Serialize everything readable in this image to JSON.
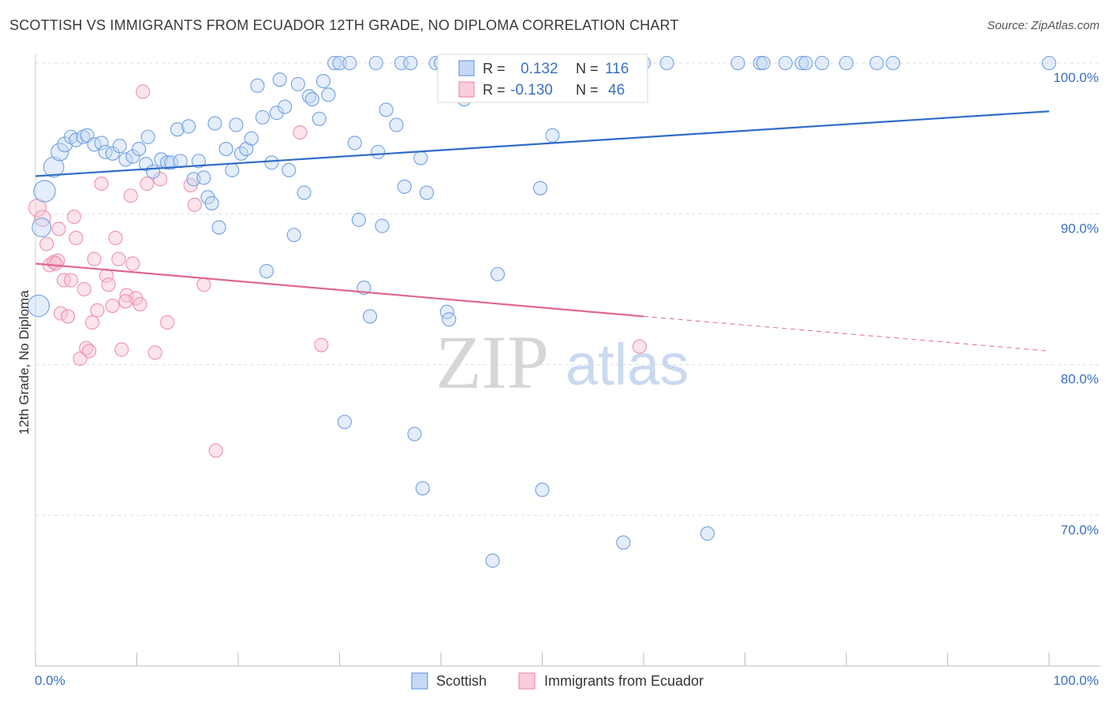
{
  "title": "SCOTTISH VS IMMIGRANTS FROM ECUADOR 12TH GRADE, NO DIPLOMA CORRELATION CHART",
  "source": "Source: ZipAtlas.com",
  "watermark": {
    "zip": "ZIP",
    "atlas": "atlas"
  },
  "colors": {
    "blue": "#6fa0e0",
    "blue_line": "#2f6cc8",
    "pink": "#ef8fae",
    "pink_line": "#e0678f",
    "grid": "#dddddd"
  },
  "stats_box": {
    "rows": [
      {
        "r_label": "R =",
        "r_value": "0.132",
        "n_label": "N =",
        "n_value": "116"
      },
      {
        "r_label": "R =",
        "r_value": "-0.130",
        "n_label": "N =",
        "n_value": "46"
      }
    ]
  },
  "chart_data": {
    "type": "scatter",
    "title": "SCOTTISH VS IMMIGRANTS FROM ECUADOR 12TH GRADE, NO DIPLOMA CORRELATION CHART",
    "xlabel": "",
    "ylabel": "12th Grade, No Diploma",
    "xlim": [
      0,
      100
    ],
    "ylim": [
      60,
      100
    ],
    "x_tick_labels": [
      "0.0%",
      "100.0%"
    ],
    "y_ticks": [
      70,
      80,
      90,
      100
    ],
    "y_tick_labels": [
      "70.0%",
      "80.0%",
      "90.0%",
      "100.0%"
    ],
    "grid": true,
    "legend_placement": "bottom-center",
    "series": [
      {
        "name": "Scottish",
        "color": "#6fa0e0",
        "trend": {
          "x": [
            0,
            100
          ],
          "y": [
            92.5,
            96.8
          ]
        },
        "points": [
          [
            0.3,
            83.9,
            1.6
          ],
          [
            0.9,
            91.5,
            1.6
          ],
          [
            0.6,
            89.1,
            1.4
          ],
          [
            1.8,
            93.1,
            1.5
          ],
          [
            2.4,
            94.1,
            1.3
          ],
          [
            2.9,
            94.6,
            1.1
          ],
          [
            3.5,
            95.1,
            1
          ],
          [
            4.0,
            94.9,
            1
          ],
          [
            4.7,
            95.1,
            1
          ],
          [
            5.1,
            95.2,
            1
          ],
          [
            5.8,
            94.6,
            1
          ],
          [
            6.5,
            94.7,
            1
          ],
          [
            6.9,
            94.1,
            1
          ],
          [
            7.6,
            94.0,
            1
          ],
          [
            8.3,
            94.5,
            1
          ],
          [
            8.9,
            93.6,
            1
          ],
          [
            9.6,
            93.8,
            1
          ],
          [
            10.2,
            94.3,
            1
          ],
          [
            10.9,
            93.3,
            1
          ],
          [
            11.1,
            95.1,
            1
          ],
          [
            11.6,
            92.8,
            1
          ],
          [
            12.4,
            93.6,
            1
          ],
          [
            13.0,
            93.4,
            1
          ],
          [
            13.4,
            93.4,
            1
          ],
          [
            14.3,
            93.5,
            1
          ],
          [
            14.0,
            95.6,
            1
          ],
          [
            15.1,
            95.8,
            1
          ],
          [
            15.6,
            92.3,
            1
          ],
          [
            16.1,
            93.5,
            1
          ],
          [
            16.6,
            92.4,
            1
          ],
          [
            17.0,
            91.1,
            1
          ],
          [
            17.4,
            90.7,
            1
          ],
          [
            18.1,
            89.1,
            1
          ],
          [
            17.7,
            96.0,
            1
          ],
          [
            18.8,
            94.3,
            1
          ],
          [
            19.4,
            92.9,
            1
          ],
          [
            19.8,
            95.9,
            1
          ],
          [
            20.3,
            94.0,
            1
          ],
          [
            20.8,
            94.3,
            1
          ],
          [
            21.3,
            95.0,
            1
          ],
          [
            21.9,
            98.5,
            1
          ],
          [
            22.4,
            96.4,
            1
          ],
          [
            22.8,
            86.2,
            1
          ],
          [
            23.3,
            93.4,
            1
          ],
          [
            23.8,
            96.7,
            1
          ],
          [
            24.1,
            98.9,
            1
          ],
          [
            24.6,
            97.1,
            1
          ],
          [
            25.0,
            92.9,
            1
          ],
          [
            25.5,
            88.6,
            1
          ],
          [
            25.9,
            98.6,
            1
          ],
          [
            26.5,
            91.4,
            1
          ],
          [
            27.0,
            97.8,
            1
          ],
          [
            27.3,
            97.6,
            1
          ],
          [
            28.0,
            96.3,
            1
          ],
          [
            28.4,
            98.8,
            1
          ],
          [
            28.9,
            97.9,
            1
          ],
          [
            29.5,
            100,
            1
          ],
          [
            30.0,
            100,
            1
          ],
          [
            31.0,
            100,
            1
          ],
          [
            31.5,
            94.7,
            1
          ],
          [
            31.9,
            89.6,
            1
          ],
          [
            32.4,
            85.1,
            1
          ],
          [
            33.0,
            83.2,
            1
          ],
          [
            33.6,
            100,
            1
          ],
          [
            33.8,
            94.1,
            1
          ],
          [
            34.2,
            89.2,
            1
          ],
          [
            34.6,
            96.9,
            1
          ],
          [
            35.6,
            95.9,
            1
          ],
          [
            36.1,
            100,
            1
          ],
          [
            36.4,
            91.8,
            1
          ],
          [
            37.0,
            100,
            1
          ],
          [
            37.4,
            75.4,
            1
          ],
          [
            38.2,
            71.8,
            1
          ],
          [
            38.0,
            93.7,
            1
          ],
          [
            38.6,
            91.4,
            1
          ],
          [
            39.5,
            100,
            1
          ],
          [
            40.0,
            100,
            1
          ],
          [
            40.6,
            83.5,
            1
          ],
          [
            40.8,
            83.0,
            1
          ],
          [
            41.2,
            100,
            1
          ],
          [
            41.9,
            100,
            1
          ],
          [
            42.3,
            97.6,
            1
          ],
          [
            43.1,
            98.7,
            1
          ],
          [
            43.9,
            100,
            1
          ],
          [
            44.4,
            100,
            1
          ],
          [
            45.1,
            67.0,
            1
          ],
          [
            45.6,
            86.0,
            1
          ],
          [
            46.2,
            100,
            1
          ],
          [
            48.2,
            100,
            1
          ],
          [
            48.6,
            97.9,
            1
          ],
          [
            49.4,
            100,
            1
          ],
          [
            49.8,
            91.7,
            1
          ],
          [
            50.0,
            71.7,
            1
          ],
          [
            50.5,
            100,
            1
          ],
          [
            51.0,
            95.2,
            1
          ],
          [
            52.0,
            100,
            1
          ],
          [
            53.0,
            100,
            1
          ],
          [
            54.1,
            100,
            1
          ],
          [
            55.0,
            100,
            1
          ],
          [
            55.6,
            100,
            1
          ],
          [
            56.4,
            100,
            1
          ],
          [
            58.0,
            100,
            1
          ],
          [
            58.0,
            68.2,
            1
          ],
          [
            60.0,
            100,
            1
          ],
          [
            62.3,
            100,
            1
          ],
          [
            66.3,
            68.8,
            1
          ],
          [
            69.3,
            100,
            1
          ],
          [
            71.5,
            100,
            1
          ],
          [
            71.8,
            100,
            1
          ],
          [
            74.0,
            100,
            1
          ],
          [
            75.6,
            100,
            1
          ],
          [
            76.0,
            100,
            1
          ],
          [
            77.6,
            100,
            1
          ],
          [
            80.0,
            100,
            1
          ],
          [
            83.0,
            100,
            1
          ],
          [
            84.6,
            100,
            1
          ],
          [
            100.0,
            100,
            1
          ],
          [
            30.5,
            76.2,
            1
          ]
        ]
      },
      {
        "name": "Immigrants from Ecuador",
        "color": "#ef8fae",
        "trend": {
          "x": [
            0,
            60
          ],
          "y": [
            86.7,
            83.2
          ]
        },
        "trend_extension": {
          "x": [
            60,
            100
          ],
          "y": [
            83.2,
            80.9
          ]
        },
        "points": [
          [
            0.2,
            90.4,
            1.3
          ],
          [
            0.7,
            89.7,
            1.2
          ],
          [
            1.1,
            88.0,
            1
          ],
          [
            1.4,
            86.6,
            1
          ],
          [
            1.8,
            86.8,
            1
          ],
          [
            2.2,
            86.9,
            1
          ],
          [
            2.3,
            89.0,
            1
          ],
          [
            2.5,
            83.4,
            1
          ],
          [
            2.8,
            85.6,
            1
          ],
          [
            3.2,
            83.2,
            1
          ],
          [
            3.5,
            85.6,
            1
          ],
          [
            3.8,
            89.8,
            1
          ],
          [
            4.0,
            88.4,
            1
          ],
          [
            4.4,
            80.4,
            1
          ],
          [
            4.8,
            85.0,
            1
          ],
          [
            5.0,
            81.1,
            1
          ],
          [
            5.3,
            80.9,
            1
          ],
          [
            5.6,
            82.8,
            1
          ],
          [
            5.8,
            87.0,
            1
          ],
          [
            6.1,
            83.6,
            1
          ],
          [
            6.5,
            92.0,
            1
          ],
          [
            7.0,
            85.9,
            1
          ],
          [
            7.2,
            85.3,
            1
          ],
          [
            7.6,
            83.9,
            1
          ],
          [
            7.9,
            88.4,
            1
          ],
          [
            8.2,
            87.0,
            1
          ],
          [
            8.5,
            81.0,
            1
          ],
          [
            9.0,
            84.6,
            1
          ],
          [
            9.4,
            91.2,
            1
          ],
          [
            9.6,
            86.7,
            1
          ],
          [
            9.9,
            84.4,
            1
          ],
          [
            10.3,
            84.0,
            1
          ],
          [
            10.6,
            98.1,
            1
          ],
          [
            11.0,
            92.0,
            1
          ],
          [
            11.8,
            80.8,
            1
          ],
          [
            12.3,
            92.3,
            1
          ],
          [
            13.0,
            82.8,
            1
          ],
          [
            15.3,
            91.9,
            1
          ],
          [
            15.7,
            90.6,
            1
          ],
          [
            16.6,
            85.3,
            1
          ],
          [
            17.8,
            74.3,
            1
          ],
          [
            26.1,
            95.4,
            1
          ],
          [
            28.2,
            81.3,
            1
          ],
          [
            59.6,
            81.2,
            1
          ],
          [
            8.9,
            84.2,
            1
          ],
          [
            2.0,
            86.7,
            1
          ]
        ]
      }
    ]
  },
  "legend": [
    {
      "label": "Scottish"
    },
    {
      "label": "Immigrants from Ecuador"
    }
  ]
}
